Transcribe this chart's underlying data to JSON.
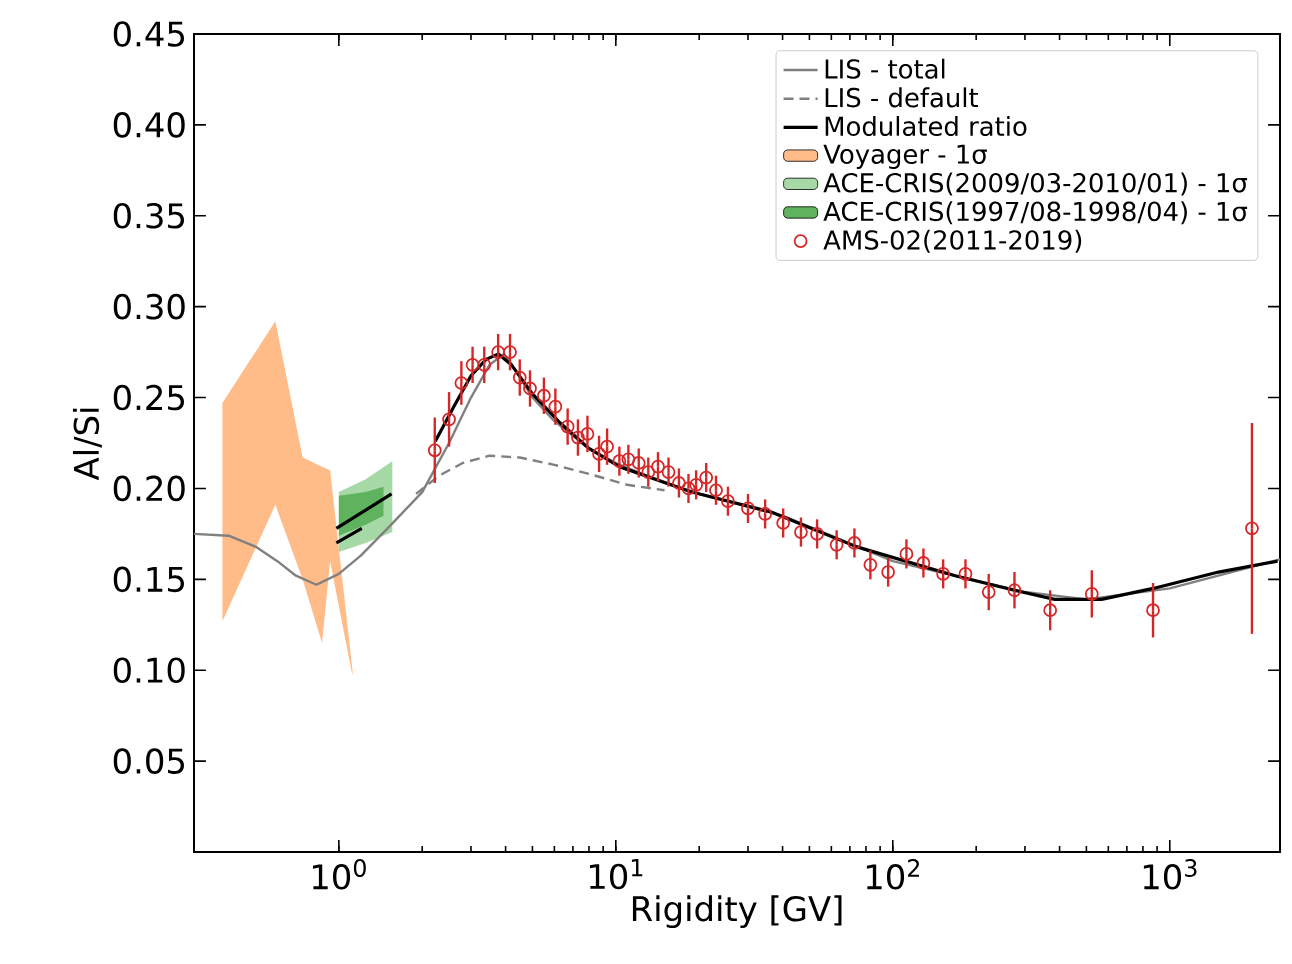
{
  "chart_data": {
    "type": "line",
    "xlabel": "Rigidity [GV]",
    "ylabel": "Al/Si",
    "log": "x",
    "xlim": [
      0.3,
      2500
    ],
    "ylim": [
      0,
      0.45
    ],
    "xticks": [
      {
        "value": 1,
        "label": "10$^{0}$"
      },
      {
        "value": 10,
        "label": "10$^{1}$"
      },
      {
        "value": 100,
        "label": "10$^{2}$"
      },
      {
        "value": 1000,
        "label": "10$^{3}$"
      }
    ],
    "yticks": [
      {
        "value": 0.05,
        "label": "0.05"
      },
      {
        "value": 0.1,
        "label": "0.10"
      },
      {
        "value": 0.15,
        "label": "0.15"
      },
      {
        "value": 0.2,
        "label": "0.20"
      },
      {
        "value": 0.25,
        "label": "0.25"
      },
      {
        "value": 0.3,
        "label": "0.30"
      },
      {
        "value": 0.35,
        "label": "0.35"
      },
      {
        "value": 0.4,
        "label": "0.40"
      },
      {
        "value": 0.45,
        "label": "0.45"
      }
    ],
    "legend": "top right",
    "series": [
      {
        "name": "LIS - total",
        "color": "#808080",
        "line_style": "solid",
        "marker": "none",
        "x": [
          0.3,
          0.4,
          0.5,
          0.6,
          0.7,
          0.83,
          1.0,
          1.2,
          1.5,
          2.0,
          2.5,
          3.0,
          3.5,
          3.95,
          4.3,
          5,
          6,
          8,
          10,
          15,
          20,
          40,
          100,
          300,
          500,
          1000,
          2500
        ],
        "values": [
          0.175,
          0.174,
          0.168,
          0.16,
          0.152,
          0.147,
          0.153,
          0.163,
          0.178,
          0.198,
          0.225,
          0.25,
          0.268,
          0.274,
          0.266,
          0.25,
          0.237,
          0.222,
          0.214,
          0.203,
          0.197,
          0.185,
          0.16,
          0.143,
          0.139,
          0.145,
          0.161
        ]
      },
      {
        "name": "LIS - default",
        "color": "#808080",
        "line_style": "dashed",
        "marker": "none",
        "x": [
          1.9,
          2.3,
          2.8,
          3.5,
          4.5,
          6,
          8,
          11,
          15
        ],
        "values": [
          0.197,
          0.207,
          0.214,
          0.218,
          0.217,
          0.213,
          0.208,
          0.202,
          0.199
        ]
      },
      {
        "name": "Modulated ratio",
        "color": "#000000",
        "line_style": "solid",
        "marker": "none",
        "x": [
          2.23,
          2.6,
          3.0,
          3.4,
          3.77,
          4.2,
          5,
          6.3,
          8,
          10.3,
          18.8,
          36.4,
          73.7,
          168,
          293,
          384,
          567,
          871,
          1500,
          2450
        ],
        "values": [
          0.226,
          0.245,
          0.262,
          0.271,
          0.274,
          0.268,
          0.252,
          0.236,
          0.222,
          0.212,
          0.198,
          0.187,
          0.168,
          0.152,
          0.143,
          0.139,
          0.139,
          0.145,
          0.154,
          0.16
        ]
      },
      {
        "name": "Voyager - 1σ",
        "type": "area",
        "color": "#ffbb88",
        "x": [
          0.38,
          0.59,
          0.74,
          0.87,
          0.93,
          1.12
        ],
        "values": [
          null,
          null,
          null,
          null,
          null,
          null
        ],
        "lower": [
          0.127,
          0.191,
          0.15,
          0.115,
          0.16,
          0.097
        ],
        "upper": [
          0.247,
          0.292,
          0.217,
          0.212,
          0.21,
          0.1
        ]
      },
      {
        "name": "ACE-CRIS(2009/03-2010/01) - 1σ",
        "type": "area",
        "color": "#a6d9a6",
        "x": [
          1.0,
          1.25,
          1.56
        ],
        "values": [
          null,
          null,
          null
        ],
        "lower": [
          0.165,
          0.17,
          0.176
        ],
        "upper": [
          0.198,
          0.205,
          0.215
        ]
      },
      {
        "name": "ACE-CRIS(1997/08-1998/04) - 1σ",
        "type": "area",
        "color": "#5fb35f",
        "x": [
          1.0,
          1.25,
          1.45
        ],
        "values": [
          null,
          null,
          null
        ],
        "lower": [
          0.174,
          0.18,
          0.185
        ],
        "upper": [
          0.196,
          0.198,
          0.201
        ]
      },
      {
        "name": "AMS-02(2011-2019)",
        "type": "scatter",
        "color": "#d62728",
        "marker": "circle",
        "x": [
          2.22,
          2.5,
          2.77,
          3.04,
          3.35,
          3.76,
          4.15,
          4.5,
          4.9,
          5.5,
          6.05,
          6.7,
          7.3,
          7.9,
          8.7,
          9.3,
          10.3,
          11.1,
          12.1,
          13.1,
          14.2,
          15.5,
          16.9,
          18.3,
          19.5,
          21.2,
          23.0,
          25.4,
          30.0,
          34.6,
          40.2,
          46.6,
          53.3,
          62.7,
          72.7,
          83.0,
          96.2,
          112,
          129,
          152,
          183,
          222,
          275,
          370,
          523,
          870,
          1980
        ],
        "values": [
          0.221,
          0.238,
          0.258,
          0.268,
          0.268,
          0.275,
          0.275,
          0.261,
          0.255,
          0.251,
          0.245,
          0.234,
          0.228,
          0.23,
          0.219,
          0.223,
          0.215,
          0.216,
          0.214,
          0.209,
          0.212,
          0.209,
          0.203,
          0.2,
          0.202,
          0.206,
          0.199,
          0.193,
          0.189,
          0.186,
          0.181,
          0.176,
          0.175,
          0.169,
          0.17,
          0.158,
          0.154,
          0.164,
          0.159,
          0.153,
          0.153,
          0.143,
          0.144,
          0.133,
          0.142,
          0.133,
          0.178
        ],
        "errors": [
          0.018,
          0.015,
          0.012,
          0.01,
          0.01,
          0.01,
          0.01,
          0.01,
          0.01,
          0.01,
          0.01,
          0.01,
          0.01,
          0.01,
          0.01,
          0.01,
          0.008,
          0.008,
          0.008,
          0.008,
          0.008,
          0.008,
          0.008,
          0.008,
          0.008,
          0.008,
          0.008,
          0.008,
          0.008,
          0.008,
          0.008,
          0.008,
          0.008,
          0.008,
          0.008,
          0.008,
          0.008,
          0.008,
          0.008,
          0.008,
          0.008,
          0.01,
          0.01,
          0.011,
          0.013,
          0.015,
          0.058
        ]
      },
      {
        "color": "#000000",
        "line_style": "solid",
        "marker": "none",
        "x": [
          0.98,
          1.55
        ],
        "values": [
          0.178,
          0.197
        ]
      },
      {
        "color": "#000000",
        "line_style": "solid",
        "marker": "none",
        "x": [
          0.98,
          1.21
        ],
        "values": [
          0.17,
          0.178
        ]
      }
    ]
  }
}
